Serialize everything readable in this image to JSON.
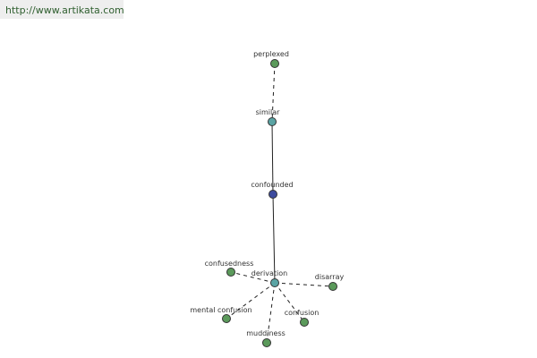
{
  "header": {
    "url": "http://www.artikata.com"
  },
  "nodes": [
    {
      "label": "perplexed"
    },
    {
      "label": "similar"
    },
    {
      "label": "confounded"
    },
    {
      "label": "derivation"
    },
    {
      "label": "confusedness"
    },
    {
      "label": "disarray"
    },
    {
      "label": "mental confusion"
    },
    {
      "label": "confusion"
    },
    {
      "label": "muddiness"
    }
  ]
}
